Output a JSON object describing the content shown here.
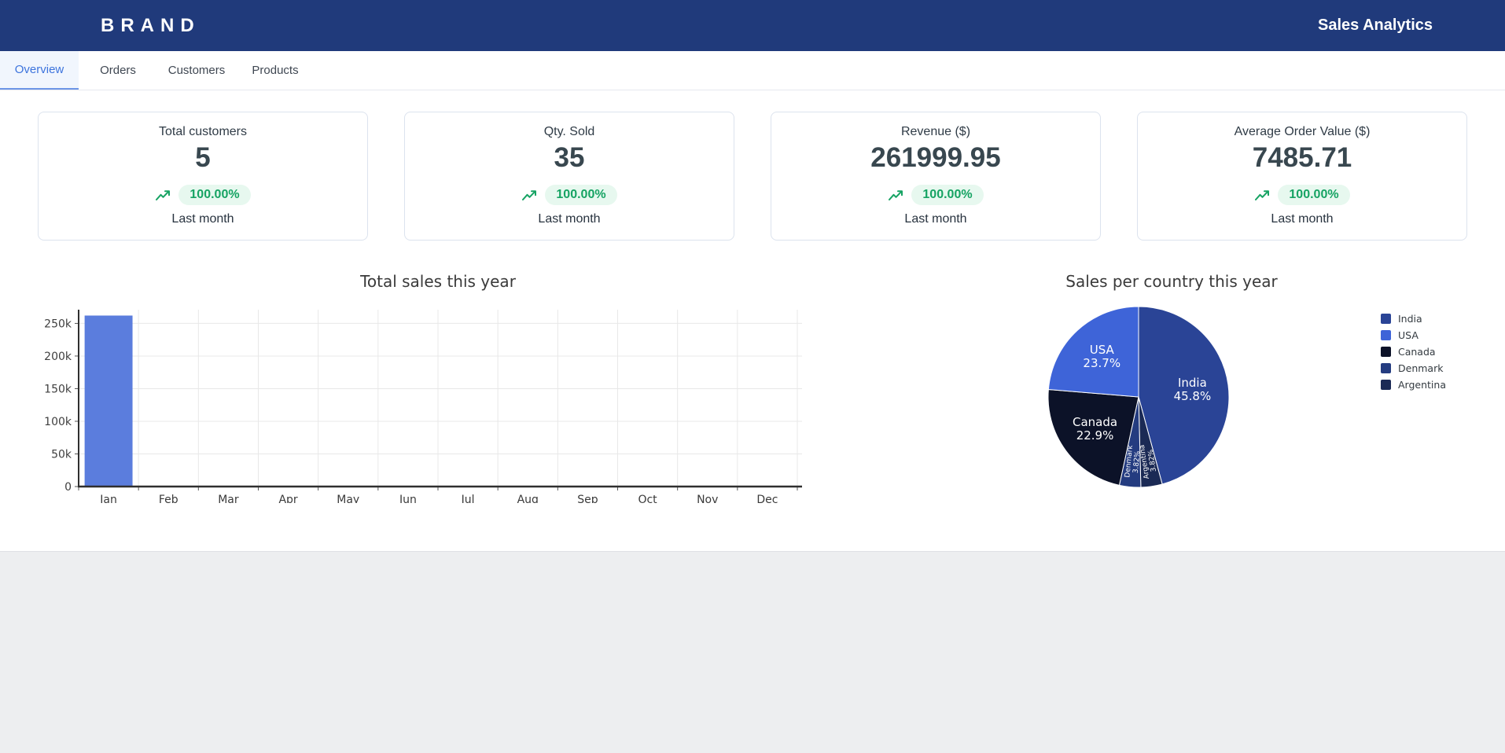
{
  "header": {
    "brand": "BRAND",
    "app_title": "Sales Analytics"
  },
  "tabs": [
    {
      "label": "Overview",
      "active": true
    },
    {
      "label": "Orders",
      "active": false
    },
    {
      "label": "Customers",
      "active": false
    },
    {
      "label": "Products",
      "active": false
    }
  ],
  "stat_cards": [
    {
      "title": "Total customers",
      "value": "5",
      "change": "100.00%",
      "period": "Last month"
    },
    {
      "title": "Qty. Sold",
      "value": "35",
      "change": "100.00%",
      "period": "Last month"
    },
    {
      "title": "Revenue ($)",
      "value": "261999.95",
      "change": "100.00%",
      "period": "Last month"
    },
    {
      "title": "Average Order Value ($)",
      "value": "7485.71",
      "change": "100.00%",
      "period": "Last month"
    }
  ],
  "chart_data": [
    {
      "type": "bar",
      "title": "Total sales this year",
      "categories": [
        "Jan",
        "Feb",
        "Mar",
        "Apr",
        "May",
        "Jun",
        "Jul",
        "Aug",
        "Sep",
        "Oct",
        "Nov",
        "Dec"
      ],
      "values": [
        261999.95,
        0,
        0,
        0,
        0,
        0,
        0,
        0,
        0,
        0,
        0,
        0
      ],
      "xlabel": "",
      "ylabel": "",
      "ylim": [
        0,
        271000
      ],
      "ytick_values": [
        0,
        50000,
        100000,
        150000,
        200000,
        250000
      ],
      "ytick_labels": [
        "0",
        "50k",
        "100k",
        "150k",
        "200k",
        "250k"
      ],
      "grid": true,
      "bar_color": "#5b7ddd"
    },
    {
      "type": "pie",
      "title": "Sales per country this year",
      "start_angle": "top",
      "direction": "clockwise",
      "legend_position": "right",
      "slices": [
        {
          "label": "India",
          "pct": 45.8,
          "pct_label": "45.8%",
          "color": "#2a4496"
        },
        {
          "label": "Argentina",
          "pct": 3.82,
          "pct_label": "3.82%",
          "color": "#1b2a55"
        },
        {
          "label": "Denmark",
          "pct": 3.82,
          "pct_label": "3.82%",
          "color": "#243c80"
        },
        {
          "label": "Canada",
          "pct": 22.9,
          "pct_label": "22.9%",
          "color": "#0c1228"
        },
        {
          "label": "USA",
          "pct": 23.7,
          "pct_label": "23.7%",
          "color": "#3e64d8"
        }
      ],
      "legend": [
        "India",
        "USA",
        "Canada",
        "Denmark",
        "Argentina"
      ]
    }
  ],
  "colors": {
    "header_bg": "#203a7b",
    "accent_blue": "#3d74dd",
    "positive_green": "#16a363",
    "positive_bg": "#e7f8ef",
    "bar_blue": "#5b7ddd",
    "page_bg": "#edeef0"
  }
}
